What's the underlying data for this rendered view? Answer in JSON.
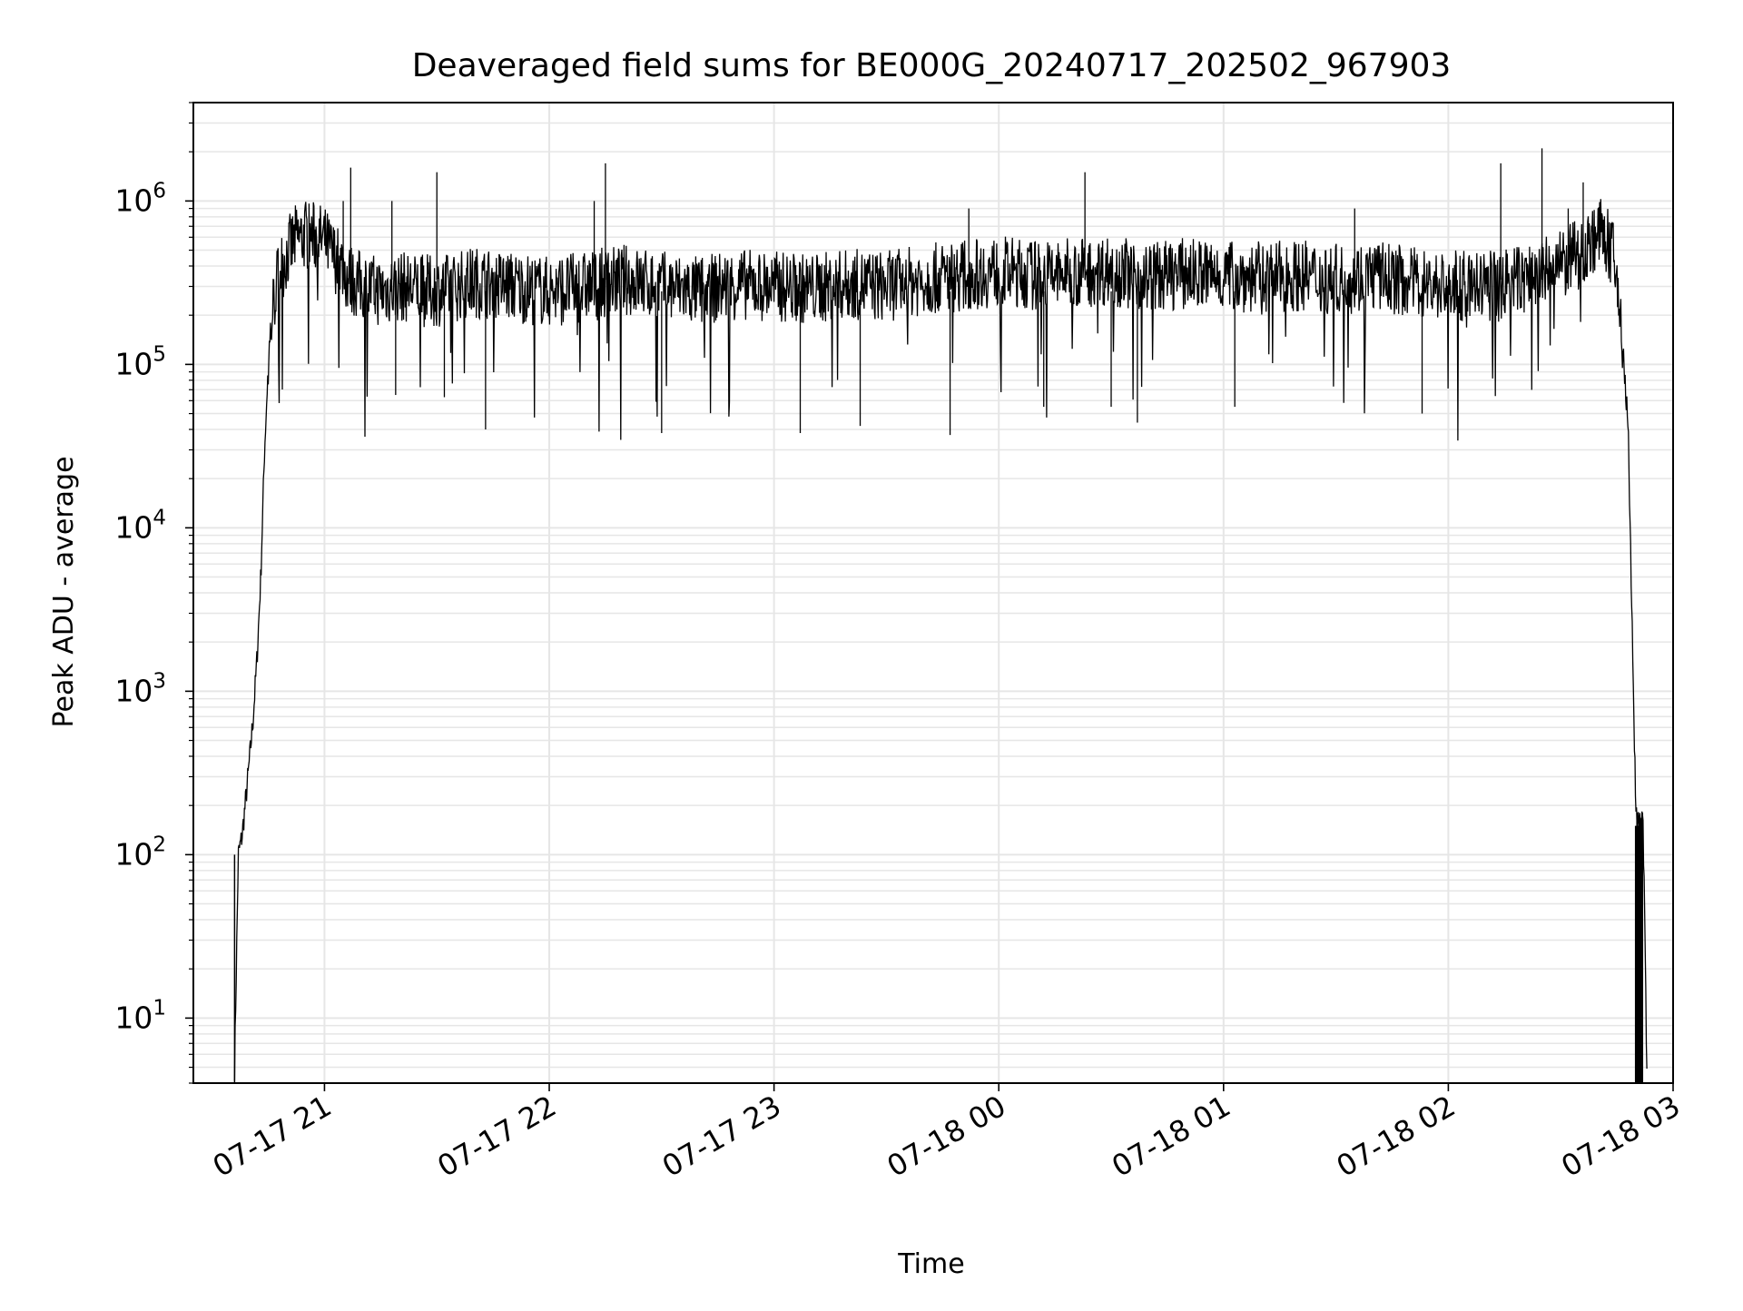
{
  "chart_data": {
    "type": "line",
    "title": "Deaveraged field sums for BE000G_20240717_202502_967903",
    "xlabel": "Time",
    "ylabel": "Peak ADU - average",
    "yscale": "log",
    "grid": true,
    "legend": "none",
    "colors": {
      "line": "#000000",
      "grid": "#e6e6e6",
      "axes": "#000000",
      "background": "#ffffff"
    },
    "xlim": [
      "2024-07-17 20:25",
      "2024-07-18 03:00"
    ],
    "ylim": [
      4,
      4000000
    ],
    "x_ticks": [
      {
        "value": "2024-07-17 21:00",
        "label": "07-17 21"
      },
      {
        "value": "2024-07-17 22:00",
        "label": "07-17 22"
      },
      {
        "value": "2024-07-17 23:00",
        "label": "07-17 23"
      },
      {
        "value": "2024-07-18 00:00",
        "label": "07-18 00"
      },
      {
        "value": "2024-07-18 01:00",
        "label": "07-18 01"
      },
      {
        "value": "2024-07-18 02:00",
        "label": "07-18 02"
      },
      {
        "value": "2024-07-18 03:00",
        "label": "07-18 03"
      }
    ],
    "y_ticks": [
      {
        "value": 10,
        "mantissa": "10",
        "exponent": "1"
      },
      {
        "value": 100,
        "mantissa": "10",
        "exponent": "2"
      },
      {
        "value": 1000,
        "mantissa": "10",
        "exponent": "3"
      },
      {
        "value": 10000,
        "mantissa": "10",
        "exponent": "4"
      },
      {
        "value": 100000,
        "mantissa": "10",
        "exponent": "5"
      },
      {
        "value": 1000000,
        "mantissa": "10",
        "exponent": "6"
      }
    ],
    "series": [
      {
        "x": [
          "2024-07-17 20:36",
          "2024-07-17 20:37",
          "2024-07-17 20:38",
          "2024-07-17 20:39",
          "2024-07-17 20:40",
          "2024-07-17 20:41",
          "2024-07-17 20:42",
          "2024-07-17 20:43",
          "2024-07-17 20:44",
          "2024-07-17 20:45",
          "2024-07-17 20:46",
          "2024-07-17 20:47",
          "2024-07-17 20:48",
          "2024-07-17 20:50",
          "2024-07-17 20:52",
          "2024-07-17 20:55",
          "2024-07-17 20:58",
          "2024-07-17 21:00",
          "2024-07-17 21:02",
          "2024-07-17 21:05",
          "2024-07-17 21:06",
          "2024-07-17 21:10",
          "2024-07-17 21:15",
          "2024-07-17 21:20",
          "2024-07-17 21:30",
          "2024-07-17 21:40",
          "2024-07-17 21:50",
          "2024-07-17 22:00",
          "2024-07-17 22:10",
          "2024-07-17 22:20",
          "2024-07-17 22:30",
          "2024-07-17 22:40",
          "2024-07-17 22:50",
          "2024-07-17 23:00",
          "2024-07-17 23:10",
          "2024-07-17 23:20",
          "2024-07-17 23:30",
          "2024-07-17 23:40",
          "2024-07-17 23:50",
          "2024-07-18 00:00",
          "2024-07-18 00:10",
          "2024-07-18 00:20",
          "2024-07-18 00:30",
          "2024-07-18 00:40",
          "2024-07-18 00:50",
          "2024-07-18 01:00",
          "2024-07-18 01:10",
          "2024-07-18 01:20",
          "2024-07-18 01:30",
          "2024-07-18 01:40",
          "2024-07-18 01:50",
          "2024-07-18 02:00",
          "2024-07-18 02:10",
          "2024-07-18 02:20",
          "2024-07-18 02:30",
          "2024-07-18 02:35",
          "2024-07-18 02:38",
          "2024-07-18 02:40",
          "2024-07-18 02:42",
          "2024-07-18 02:44",
          "2024-07-18 02:46",
          "2024-07-18 02:48",
          "2024-07-18 02:49",
          "2024-07-18 02:50",
          "2024-07-18 02:51",
          "2024-07-18 02:52",
          "2024-07-18 02:53"
        ],
        "y": [
          5,
          100,
          130,
          220,
          380,
          700,
          1600,
          5000,
          30000,
          100000,
          200000,
          300000,
          370000,
          470000,
          570000,
          620000,
          600000,
          570000,
          470000,
          400000,
          340000,
          300000,
          280000,
          300000,
          280000,
          320000,
          300000,
          280000,
          300000,
          330000,
          300000,
          280000,
          310000,
          300000,
          290000,
          310000,
          300000,
          330000,
          350000,
          370000,
          350000,
          360000,
          380000,
          340000,
          360000,
          350000,
          340000,
          350000,
          330000,
          350000,
          320000,
          300000,
          300000,
          330000,
          400000,
          480000,
          560000,
          640000,
          600000,
          450000,
          200000,
          40000,
          3000,
          200,
          150,
          160,
          5
        ]
      }
    ],
    "spikes": [
      {
        "x": "2024-07-17 21:07",
        "y": 1600000
      },
      {
        "x": "2024-07-17 21:30",
        "y": 1500000
      },
      {
        "x": "2024-07-17 22:15",
        "y": 1700000
      },
      {
        "x": "2024-07-18 00:23",
        "y": 1500000
      },
      {
        "x": "2024-07-18 02:14",
        "y": 1700000
      },
      {
        "x": "2024-07-18 02:25",
        "y": 2100000
      },
      {
        "x": "2024-07-18 02:36",
        "y": 1300000
      },
      {
        "x": "2024-07-17 21:05",
        "y": 1000000
      },
      {
        "x": "2024-07-17 21:18",
        "y": 1000000
      },
      {
        "x": "2024-07-17 22:12",
        "y": 1000000
      },
      {
        "x": "2024-07-17 23:52",
        "y": 900000
      },
      {
        "x": "2024-07-18 01:35",
        "y": 900000
      },
      {
        "x": "2024-07-18 02:32",
        "y": 900000
      },
      {
        "x": "2024-07-17 21:43",
        "y": 40000
      },
      {
        "x": "2024-07-17 22:30",
        "y": 38000
      },
      {
        "x": "2024-07-17 23:07",
        "y": 38000
      },
      {
        "x": "2024-07-17 23:23",
        "y": 42000
      },
      {
        "x": "2024-07-17 23:47",
        "y": 37000
      },
      {
        "x": "2024-07-18 00:37",
        "y": 44000
      },
      {
        "x": "2024-07-17 21:19",
        "y": 65000
      },
      {
        "x": "2024-07-17 21:32",
        "y": 63000
      },
      {
        "x": "2024-07-18 00:12",
        "y": 55000
      },
      {
        "x": "2024-07-18 00:30",
        "y": 55000
      },
      {
        "x": "2024-07-18 01:03",
        "y": 55000
      },
      {
        "x": "2024-07-18 01:53",
        "y": 50000
      }
    ]
  }
}
